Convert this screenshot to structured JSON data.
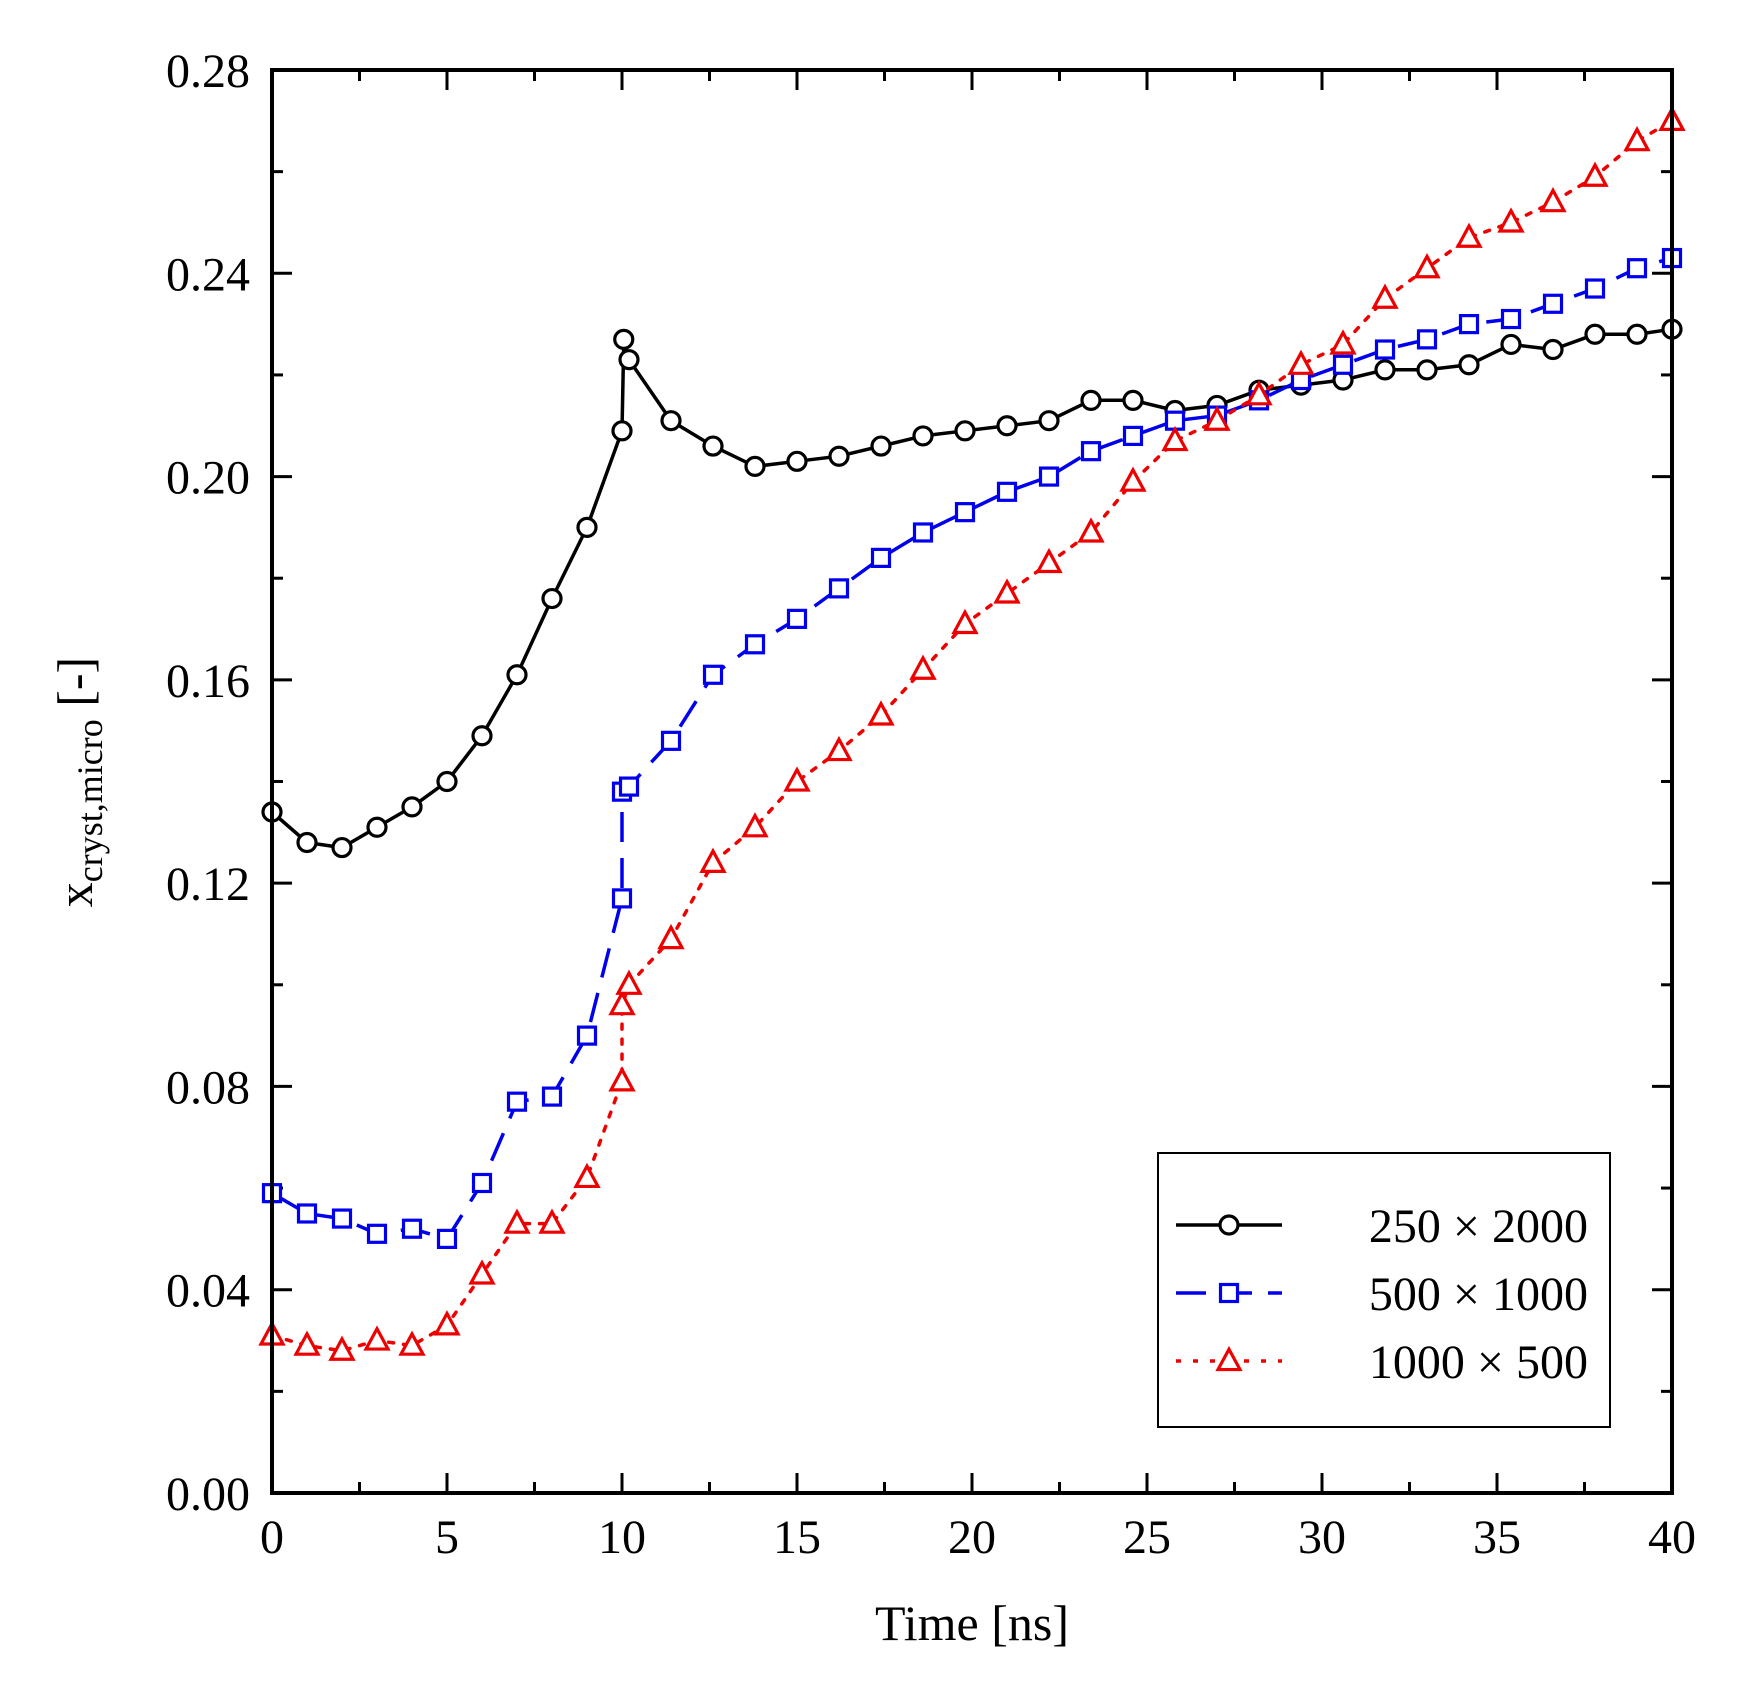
{
  "chart_data": {
    "type": "line",
    "xlabel": "Time [ns]",
    "ylabel": {
      "main": "x",
      "subscript": "cryst,micro",
      "unit": " [-]"
    },
    "xlim": [
      0,
      40
    ],
    "ylim": [
      0,
      0.28
    ],
    "xticks": [
      "0",
      "5",
      "10",
      "15",
      "20",
      "25",
      "30",
      "35",
      "40"
    ],
    "yticks": [
      "0.00",
      "0.04",
      "0.08",
      "0.12",
      "0.16",
      "0.20",
      "0.24",
      "0.28"
    ],
    "legend_position": "bottom-right",
    "series": [
      {
        "name": "250 × 2000",
        "color": "#000000",
        "marker": "circle",
        "line": "solid",
        "x": [
          0,
          1,
          2,
          3,
          4,
          5,
          6,
          7,
          8,
          9,
          10,
          10.05,
          10.2,
          11.4,
          12.6,
          13.8,
          15,
          16.2,
          17.4,
          18.6,
          19.8,
          21,
          22.2,
          23.4,
          24.6,
          25.8,
          27,
          28.2,
          29.4,
          30.6,
          31.8,
          33,
          34.2,
          35.4,
          36.6,
          37.8,
          39,
          40
        ],
        "y": [
          0.134,
          0.128,
          0.127,
          0.131,
          0.135,
          0.14,
          0.149,
          0.161,
          0.176,
          0.19,
          0.209,
          0.227,
          0.223,
          0.211,
          0.206,
          0.202,
          0.203,
          0.204,
          0.206,
          0.208,
          0.209,
          0.21,
          0.211,
          0.215,
          0.215,
          0.213,
          0.214,
          0.217,
          0.218,
          0.219,
          0.221,
          0.221,
          0.222,
          0.226,
          0.225,
          0.228,
          0.228,
          0.229
        ]
      },
      {
        "name": "500 × 1000",
        "color": "#0000ee",
        "marker": "square",
        "line": "dashed",
        "x": [
          0,
          1,
          2,
          3,
          4,
          5,
          6,
          7,
          8,
          9,
          10,
          10,
          10.2,
          11.4,
          12.6,
          13.8,
          15,
          16.2,
          17.4,
          18.6,
          19.8,
          21,
          22.2,
          23.4,
          24.6,
          25.8,
          27,
          28.2,
          29.4,
          30.6,
          31.8,
          33,
          34.2,
          35.4,
          36.6,
          37.8,
          39,
          40
        ],
        "y": [
          0.059,
          0.055,
          0.054,
          0.051,
          0.052,
          0.05,
          0.061,
          0.077,
          0.078,
          0.09,
          0.117,
          0.138,
          0.139,
          0.148,
          0.161,
          0.167,
          0.172,
          0.178,
          0.184,
          0.189,
          0.193,
          0.197,
          0.2,
          0.205,
          0.208,
          0.211,
          0.212,
          0.215,
          0.219,
          0.222,
          0.225,
          0.227,
          0.23,
          0.231,
          0.234,
          0.237,
          0.241,
          0.243
        ]
      },
      {
        "name": "1000 × 500",
        "color": "#ee0000",
        "marker": "triangle",
        "line": "dotted",
        "x": [
          0,
          1,
          2,
          3,
          4,
          5,
          6,
          7,
          8,
          9,
          10,
          10,
          10.2,
          11.4,
          12.6,
          13.8,
          15,
          16.2,
          17.4,
          18.6,
          19.8,
          21,
          22.2,
          23.4,
          24.6,
          25.8,
          27,
          28.2,
          29.4,
          30.6,
          31.8,
          33,
          34.2,
          35.4,
          36.6,
          37.8,
          39,
          40
        ],
        "y": [
          0.031,
          0.029,
          0.028,
          0.03,
          0.029,
          0.033,
          0.043,
          0.053,
          0.053,
          0.062,
          0.081,
          0.096,
          0.1,
          0.109,
          0.124,
          0.131,
          0.14,
          0.146,
          0.153,
          0.162,
          0.171,
          0.177,
          0.183,
          0.189,
          0.199,
          0.207,
          0.211,
          0.216,
          0.222,
          0.226,
          0.235,
          0.241,
          0.247,
          0.25,
          0.254,
          0.259,
          0.266,
          0.27
        ]
      }
    ]
  }
}
